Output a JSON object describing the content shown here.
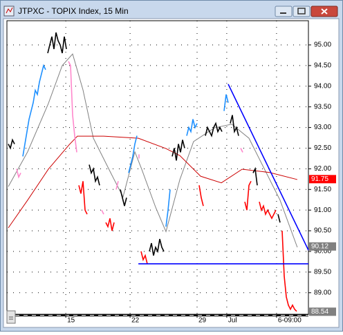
{
  "chart_data": {
    "type": "line",
    "title": "JTPXC - TOPIX Index, 15 Min",
    "xlim": [
      -0.67,
      144.67
    ],
    "ylim": [
      88.478,
      95.585
    ],
    "xticks": [
      {
        "value": 27.7,
        "label": "15"
      },
      {
        "value": 58.7,
        "label": "22"
      },
      {
        "value": 91,
        "label": "29"
      },
      {
        "value": 105.3,
        "label": "Jul"
      },
      {
        "value": 129.3,
        "label": "6-09:00"
      }
    ],
    "yticks": [
      {
        "value": 95,
        "label": "95.00"
      },
      {
        "value": 94.5,
        "label": "94.50"
      },
      {
        "value": 94,
        "label": "94.00"
      },
      {
        "value": 93.5,
        "label": "93.50"
      },
      {
        "value": 93,
        "label": "93.00"
      },
      {
        "value": 92.5,
        "label": "92.50"
      },
      {
        "value": 92,
        "label": "92.00"
      },
      {
        "value": 91.5,
        "label": "91.50"
      },
      {
        "value": 91,
        "label": "91.00"
      },
      {
        "value": 90.5,
        "label": "90.50"
      },
      {
        "value": 90,
        "label": "90.00"
      },
      {
        "value": 89.5,
        "label": "89.50"
      },
      {
        "value": 89,
        "label": "89.00"
      }
    ],
    "grid": true,
    "series": [
      {
        "color": "#000000",
        "values": [
          92.6,
          92.5,
          92.7,
          92.6
        ]
      },
      {
        "color": "#ff88cc",
        "values": [
          92.0,
          91.8,
          91.9
        ]
      },
      {
        "color": "#1e90ff",
        "values": [
          92.3,
          92.6,
          92.9,
          93.2,
          93.4,
          93.6,
          93.9,
          93.8,
          94.1,
          94.3,
          94.5,
          94.4
        ]
      },
      {
        "color": "#000000",
        "values": [
          94.8,
          95.0,
          95.2,
          94.9,
          95.3,
          95.1,
          95.0,
          94.8,
          95.2,
          94.9
        ]
      },
      {
        "color": "#ff88cc",
        "values": [
          94.6,
          94.5,
          93.3,
          92.8,
          92.4
        ]
      },
      {
        "color": "#ff0000",
        "values": [
          91.6,
          91.4,
          91.7,
          91.0,
          90.9
        ]
      },
      {
        "color": "#000000",
        "values": [
          92.1,
          91.9,
          92.0,
          91.7,
          91.8,
          91.6
        ]
      },
      {
        "color": "#ff88cc",
        "values": [
          91.0,
          90.9
        ]
      },
      {
        "color": "#ff0000",
        "values": [
          90.7,
          90.6,
          90.8,
          90.5,
          90.7
        ]
      },
      {
        "color": "#ff88cc",
        "values": [
          91.5,
          91.7
        ]
      },
      {
        "color": "#000000",
        "values": [
          91.5,
          91.3,
          91.1,
          91.3
        ]
      },
      {
        "color": "#1e90ff",
        "values": [
          91.9,
          92.1,
          92.3,
          92.6,
          92.8
        ]
      },
      {
        "color": "#ff88cc",
        "values": [
          92.3
        ]
      },
      {
        "color": "#ff0000",
        "values": [
          90.0,
          89.8,
          89.9,
          89.7
        ]
      },
      {
        "color": "#000000",
        "values": [
          90.0,
          90.2,
          89.9,
          90.1,
          90.0,
          90.3,
          90.1,
          90.0
        ]
      },
      {
        "color": "#1e90ff",
        "values": [
          90.6,
          91.0,
          91.5
        ]
      },
      {
        "color": "#000000",
        "values": [
          92.3,
          92.5,
          92.2,
          92.6,
          92.4,
          92.7,
          92.5
        ]
      },
      {
        "color": "#1e90ff",
        "values": [
          92.8,
          93.0,
          92.9,
          93.2,
          93.0,
          93.1
        ]
      },
      {
        "color": "#ff0000",
        "values": [
          91.6,
          91.3,
          91.1
        ]
      },
      {
        "color": "#000000",
        "values": [
          92.8,
          93.0,
          92.9,
          92.8,
          93.0,
          93.1,
          92.9,
          93.0,
          92.9
        ]
      },
      {
        "color": "#1e90ff",
        "values": [
          93.4,
          93.8,
          93.6
        ]
      },
      {
        "color": "#000000",
        "values": [
          93.1,
          93.3,
          92.9,
          93.0,
          92.8
        ]
      },
      {
        "color": "#ff88cc",
        "values": [
          92.5,
          92.4
        ]
      },
      {
        "color": "#ff0000",
        "values": [
          91.2,
          91.0,
          91.6,
          91.7
        ]
      },
      {
        "color": "#000000",
        "values": [
          91.9,
          92.0,
          91.6
        ]
      },
      {
        "color": "#ff0000",
        "values": [
          91.2,
          91.0,
          91.1,
          90.9,
          91.0,
          90.9,
          90.8,
          90.9,
          91.0
        ]
      },
      {
        "color": "#000000",
        "values": [
          90.9,
          90.7
        ]
      },
      {
        "color": "#ff0000",
        "values": [
          90.5,
          89.4,
          88.9,
          88.7,
          88.6,
          88.7,
          88.6,
          88.55
        ]
      }
    ],
    "moving_averages": [
      {
        "color": "#808080",
        "x": [
          0,
          9.3,
          19.3,
          26,
          31,
          36,
          41,
          49.3,
          55.3,
          61,
          64.3,
          71,
          76,
          82.7,
          89.3,
          99.3,
          107.7,
          116,
          122.7,
          131,
          139.3
        ],
        "values": [
          91.57,
          92.41,
          93.58,
          94.5,
          94.78,
          93.91,
          92.74,
          91.91,
          91.32,
          92.41,
          91.99,
          91.07,
          90.48,
          91.74,
          92.66,
          92.99,
          93.08,
          92.74,
          92.07,
          91.24,
          90.1
        ]
      },
      {
        "color": "#cc0000",
        "x": [
          0,
          9.3,
          19.3,
          29.3,
          33.3,
          46,
          62.7,
          76,
          82.7,
          92.7,
          102.7,
          112.7,
          126,
          139.3
        ],
        "values": [
          90.57,
          91.24,
          91.99,
          92.58,
          92.79,
          92.79,
          92.74,
          92.49,
          92.32,
          91.82,
          91.66,
          91.99,
          91.91,
          91.74
        ]
      }
    ],
    "trendlines": [
      {
        "color": "#0000ff",
        "x": [
          106,
          144.7
        ],
        "values": [
          94.05,
          90.03
        ]
      },
      {
        "color": "#0000ff",
        "x": [
          62.7,
          144.7
        ],
        "values": [
          89.7,
          89.7
        ]
      }
    ],
    "price_labels": [
      {
        "value": 91.75,
        "color": "#ff0000"
      },
      {
        "value": 90.12,
        "color": "#808080"
      },
      {
        "value": 88.54,
        "color": "#808080"
      }
    ]
  }
}
